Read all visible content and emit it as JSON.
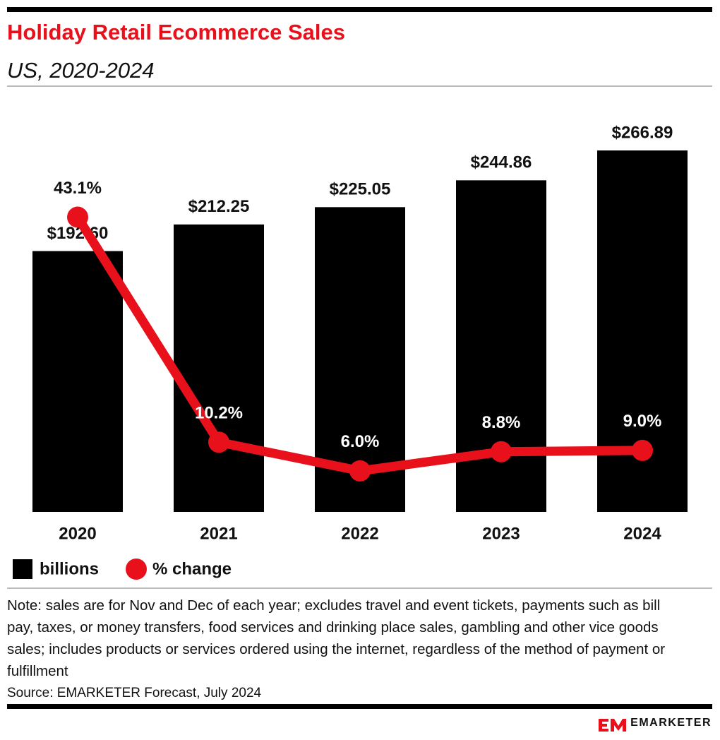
{
  "chart_data": {
    "type": "bar",
    "title": "Holiday Retail Ecommerce Sales",
    "subtitle": "US, 2020-2024",
    "categories": [
      "2020",
      "2021",
      "2022",
      "2023",
      "2024"
    ],
    "series": [
      {
        "name": "billions",
        "type": "bar",
        "color": "#000000",
        "values": [
          192.6,
          212.25,
          225.05,
          244.86,
          266.89
        ],
        "value_labels": [
          "$192.60",
          "$212.25",
          "$225.05",
          "$244.86",
          "$266.89"
        ]
      },
      {
        "name": "% change",
        "type": "line",
        "axis": "y2",
        "color": "#e8111b",
        "values": [
          43.1,
          10.2,
          6.0,
          8.8,
          9.0
        ],
        "value_labels": [
          "43.1%",
          "10.2%",
          "6.0%",
          "8.8%",
          "9.0%"
        ]
      }
    ],
    "ylim": [
      0,
      305
    ],
    "y2lim": [
      0,
      60.4
    ],
    "note": "Note: sales are for Nov and Dec of each year; excludes travel and event tickets, payments such as bill pay, taxes, or money transfers, food services and drinking place sales, gambling and other vice goods sales; includes products or services ordered using the internet, regardless of the method of payment or fulfillment",
    "source": "Source: EMARKETER Forecast, July 2024"
  },
  "brand": "EMARKETER"
}
